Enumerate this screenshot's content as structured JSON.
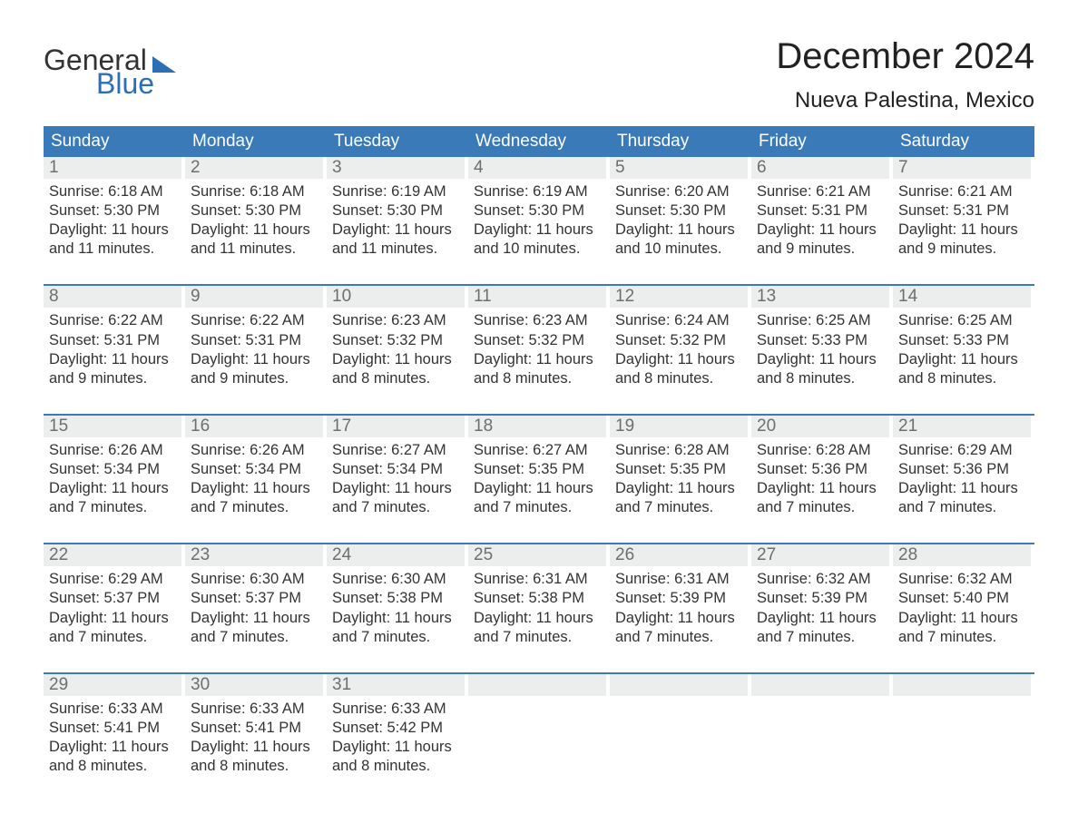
{
  "brand": {
    "word1": "General",
    "word2": "Blue",
    "accent_color": "#2d6fb5"
  },
  "title": "December 2024",
  "location": "Nueva Palestina, Mexico",
  "header_bg": "#3a7ab8",
  "daynum_bg": "#eceded",
  "text_color": "#333333",
  "days_of_week": [
    "Sunday",
    "Monday",
    "Tuesday",
    "Wednesday",
    "Thursday",
    "Friday",
    "Saturday"
  ],
  "weeks": [
    [
      {
        "n": "1",
        "sunrise": "Sunrise: 6:18 AM",
        "sunset": "Sunset: 5:30 PM",
        "d1": "Daylight: 11 hours",
        "d2": "and 11 minutes."
      },
      {
        "n": "2",
        "sunrise": "Sunrise: 6:18 AM",
        "sunset": "Sunset: 5:30 PM",
        "d1": "Daylight: 11 hours",
        "d2": "and 11 minutes."
      },
      {
        "n": "3",
        "sunrise": "Sunrise: 6:19 AM",
        "sunset": "Sunset: 5:30 PM",
        "d1": "Daylight: 11 hours",
        "d2": "and 11 minutes."
      },
      {
        "n": "4",
        "sunrise": "Sunrise: 6:19 AM",
        "sunset": "Sunset: 5:30 PM",
        "d1": "Daylight: 11 hours",
        "d2": "and 10 minutes."
      },
      {
        "n": "5",
        "sunrise": "Sunrise: 6:20 AM",
        "sunset": "Sunset: 5:30 PM",
        "d1": "Daylight: 11 hours",
        "d2": "and 10 minutes."
      },
      {
        "n": "6",
        "sunrise": "Sunrise: 6:21 AM",
        "sunset": "Sunset: 5:31 PM",
        "d1": "Daylight: 11 hours",
        "d2": "and 9 minutes."
      },
      {
        "n": "7",
        "sunrise": "Sunrise: 6:21 AM",
        "sunset": "Sunset: 5:31 PM",
        "d1": "Daylight: 11 hours",
        "d2": "and 9 minutes."
      }
    ],
    [
      {
        "n": "8",
        "sunrise": "Sunrise: 6:22 AM",
        "sunset": "Sunset: 5:31 PM",
        "d1": "Daylight: 11 hours",
        "d2": "and 9 minutes."
      },
      {
        "n": "9",
        "sunrise": "Sunrise: 6:22 AM",
        "sunset": "Sunset: 5:31 PM",
        "d1": "Daylight: 11 hours",
        "d2": "and 9 minutes."
      },
      {
        "n": "10",
        "sunrise": "Sunrise: 6:23 AM",
        "sunset": "Sunset: 5:32 PM",
        "d1": "Daylight: 11 hours",
        "d2": "and 8 minutes."
      },
      {
        "n": "11",
        "sunrise": "Sunrise: 6:23 AM",
        "sunset": "Sunset: 5:32 PM",
        "d1": "Daylight: 11 hours",
        "d2": "and 8 minutes."
      },
      {
        "n": "12",
        "sunrise": "Sunrise: 6:24 AM",
        "sunset": "Sunset: 5:32 PM",
        "d1": "Daylight: 11 hours",
        "d2": "and 8 minutes."
      },
      {
        "n": "13",
        "sunrise": "Sunrise: 6:25 AM",
        "sunset": "Sunset: 5:33 PM",
        "d1": "Daylight: 11 hours",
        "d2": "and 8 minutes."
      },
      {
        "n": "14",
        "sunrise": "Sunrise: 6:25 AM",
        "sunset": "Sunset: 5:33 PM",
        "d1": "Daylight: 11 hours",
        "d2": "and 8 minutes."
      }
    ],
    [
      {
        "n": "15",
        "sunrise": "Sunrise: 6:26 AM",
        "sunset": "Sunset: 5:34 PM",
        "d1": "Daylight: 11 hours",
        "d2": "and 7 minutes."
      },
      {
        "n": "16",
        "sunrise": "Sunrise: 6:26 AM",
        "sunset": "Sunset: 5:34 PM",
        "d1": "Daylight: 11 hours",
        "d2": "and 7 minutes."
      },
      {
        "n": "17",
        "sunrise": "Sunrise: 6:27 AM",
        "sunset": "Sunset: 5:34 PM",
        "d1": "Daylight: 11 hours",
        "d2": "and 7 minutes."
      },
      {
        "n": "18",
        "sunrise": "Sunrise: 6:27 AM",
        "sunset": "Sunset: 5:35 PM",
        "d1": "Daylight: 11 hours",
        "d2": "and 7 minutes."
      },
      {
        "n": "19",
        "sunrise": "Sunrise: 6:28 AM",
        "sunset": "Sunset: 5:35 PM",
        "d1": "Daylight: 11 hours",
        "d2": "and 7 minutes."
      },
      {
        "n": "20",
        "sunrise": "Sunrise: 6:28 AM",
        "sunset": "Sunset: 5:36 PM",
        "d1": "Daylight: 11 hours",
        "d2": "and 7 minutes."
      },
      {
        "n": "21",
        "sunrise": "Sunrise: 6:29 AM",
        "sunset": "Sunset: 5:36 PM",
        "d1": "Daylight: 11 hours",
        "d2": "and 7 minutes."
      }
    ],
    [
      {
        "n": "22",
        "sunrise": "Sunrise: 6:29 AM",
        "sunset": "Sunset: 5:37 PM",
        "d1": "Daylight: 11 hours",
        "d2": "and 7 minutes."
      },
      {
        "n": "23",
        "sunrise": "Sunrise: 6:30 AM",
        "sunset": "Sunset: 5:37 PM",
        "d1": "Daylight: 11 hours",
        "d2": "and 7 minutes."
      },
      {
        "n": "24",
        "sunrise": "Sunrise: 6:30 AM",
        "sunset": "Sunset: 5:38 PM",
        "d1": "Daylight: 11 hours",
        "d2": "and 7 minutes."
      },
      {
        "n": "25",
        "sunrise": "Sunrise: 6:31 AM",
        "sunset": "Sunset: 5:38 PM",
        "d1": "Daylight: 11 hours",
        "d2": "and 7 minutes."
      },
      {
        "n": "26",
        "sunrise": "Sunrise: 6:31 AM",
        "sunset": "Sunset: 5:39 PM",
        "d1": "Daylight: 11 hours",
        "d2": "and 7 minutes."
      },
      {
        "n": "27",
        "sunrise": "Sunrise: 6:32 AM",
        "sunset": "Sunset: 5:39 PM",
        "d1": "Daylight: 11 hours",
        "d2": "and 7 minutes."
      },
      {
        "n": "28",
        "sunrise": "Sunrise: 6:32 AM",
        "sunset": "Sunset: 5:40 PM",
        "d1": "Daylight: 11 hours",
        "d2": "and 7 minutes."
      }
    ],
    [
      {
        "n": "29",
        "sunrise": "Sunrise: 6:33 AM",
        "sunset": "Sunset: 5:41 PM",
        "d1": "Daylight: 11 hours",
        "d2": "and 8 minutes."
      },
      {
        "n": "30",
        "sunrise": "Sunrise: 6:33 AM",
        "sunset": "Sunset: 5:41 PM",
        "d1": "Daylight: 11 hours",
        "d2": "and 8 minutes."
      },
      {
        "n": "31",
        "sunrise": "Sunrise: 6:33 AM",
        "sunset": "Sunset: 5:42 PM",
        "d1": "Daylight: 11 hours",
        "d2": "and 8 minutes."
      },
      null,
      null,
      null,
      null
    ]
  ]
}
